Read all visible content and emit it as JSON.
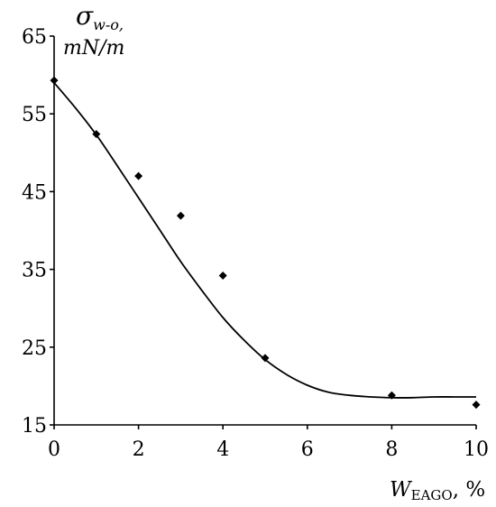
{
  "chart_data": {
    "type": "scatter",
    "x_ticks": [
      "0",
      "2",
      "4",
      "6",
      "8",
      "10"
    ],
    "y_ticks": [
      "15",
      "25",
      "35",
      "45",
      "55",
      "65"
    ],
    "xlim": [
      0,
      10
    ],
    "ylim": [
      15,
      65
    ],
    "ylabel": {
      "symbol": "σ",
      "subscript": "w-o,",
      "unit": "mN/m"
    },
    "xlabel": {
      "symbol": "W",
      "subscript": "EAGO",
      "suffix": ", %"
    },
    "series": [
      {
        "marker": "diamond",
        "x": [
          0,
          1,
          2,
          3,
          4,
          5,
          8,
          10
        ],
        "y": [
          59.3,
          52.4,
          47.0,
          41.9,
          34.2,
          23.6,
          18.8,
          17.6
        ]
      }
    ],
    "fit_curve": {
      "x": [
        0,
        0.5,
        1,
        1.5,
        2,
        2.5,
        3,
        3.5,
        4,
        4.5,
        5,
        5.5,
        6,
        6.5,
        7,
        7.5,
        8,
        8.5,
        9,
        9.5,
        10
      ],
      "y": [
        59.0,
        55.8,
        52.3,
        48.3,
        44.2,
        40.1,
        36.0,
        32.3,
        28.8,
        25.9,
        23.4,
        21.5,
        20.1,
        19.2,
        18.8,
        18.6,
        18.5,
        18.5,
        18.6,
        18.6,
        18.6
      ]
    }
  }
}
